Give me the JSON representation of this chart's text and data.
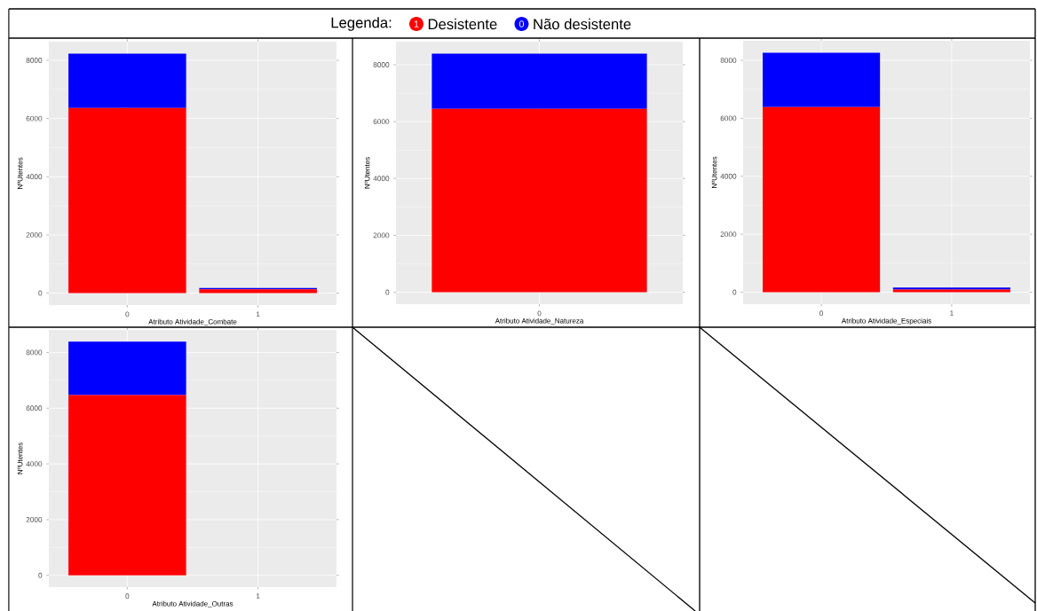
{
  "chart_data": [
    {
      "type": "bar",
      "stacked": true,
      "categories": [
        "0",
        "1"
      ],
      "legend": "top",
      "legend_title": "Legenda:",
      "annotations": [
        "1",
        "0"
      ],
      "series": [
        {
          "name": "Desistente",
          "color": "#ff0000",
          "values": [
            6360,
            130
          ]
        },
        {
          "name": "Não desistente",
          "color": "#0000ff",
          "values": [
            1870,
            50
          ]
        }
      ],
      "xlabel": "Atributo Atividade_Combate",
      "ylabel": "NºUtentes",
      "ylim": [
        -410,
        8640
      ],
      "yticks": [
        0,
        2000,
        4000,
        6000,
        8000
      ],
      "grid": true
    },
    {
      "type": "bar",
      "stacked": true,
      "categories": [
        "0"
      ],
      "series": [
        {
          "color": "#ff0000",
          "values": [
            6450
          ]
        },
        {
          "color": "#0000ff",
          "values": [
            1940
          ]
        }
      ],
      "xlabel": "Atributo Atividade_Natureza",
      "ylabel": "NºUtentes",
      "ylim": [
        -420,
        8810
      ],
      "yticks": [
        0,
        2000,
        4000,
        6000,
        8000
      ],
      "grid": true
    },
    {
      "type": "bar",
      "stacked": true,
      "categories": [
        "0",
        "1"
      ],
      "series": [
        {
          "color": "#ff0000",
          "values": [
            6390,
            90
          ]
        },
        {
          "color": "#0000ff",
          "values": [
            1870,
            70
          ]
        }
      ],
      "xlabel": "Atributo Atividade_Especiais",
      "ylabel": "NºUtentes",
      "ylim": [
        -413,
        8675
      ],
      "yticks": [
        0,
        2000,
        4000,
        6000,
        8000
      ],
      "grid": true
    },
    {
      "type": "bar",
      "stacked": true,
      "categories": [
        "0",
        "1"
      ],
      "series": [
        {
          "color": "#ff0000",
          "values": [
            6470,
            0
          ]
        },
        {
          "color": "#0000ff",
          "values": [
            1920,
            0
          ]
        }
      ],
      "xlabel": "Atributo Atividade_Outras",
      "ylabel": "NºUtentes",
      "ylim": [
        -420,
        8810
      ],
      "yticks": [
        0,
        2000,
        4000,
        6000,
        8000
      ],
      "grid": true
    }
  ]
}
